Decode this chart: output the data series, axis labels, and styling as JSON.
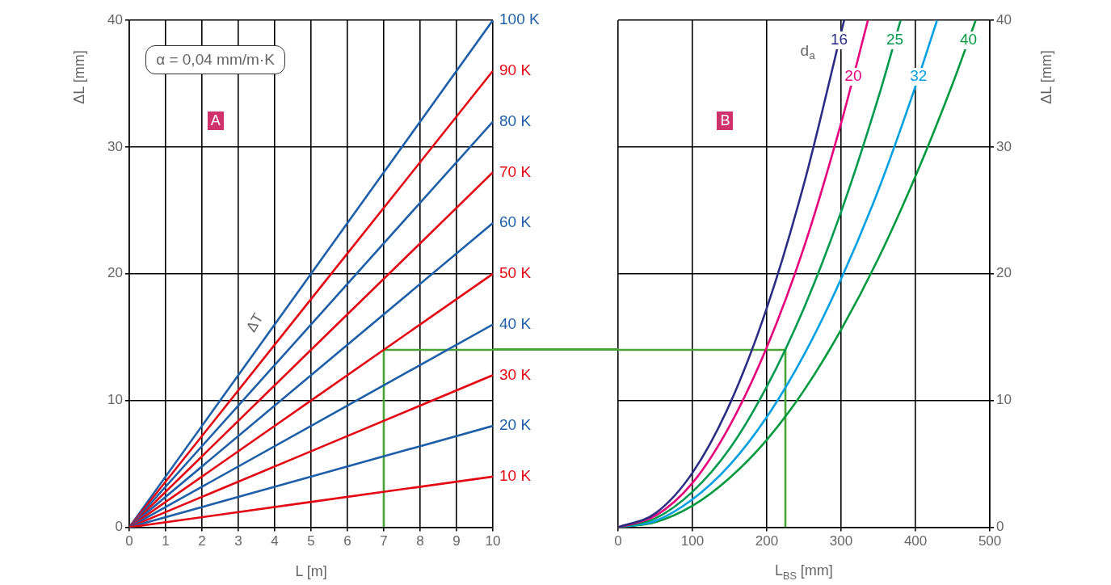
{
  "chart_data": [
    {
      "type": "line",
      "xlabel": "L [m]",
      "ylabel": "ΔL [mm]",
      "xlim": [
        0,
        10
      ],
      "ylim": [
        0,
        40
      ],
      "xticks": [
        0,
        1,
        2,
        3,
        4,
        5,
        6,
        7,
        8,
        9,
        10
      ],
      "yticks": [
        0,
        10,
        20,
        30,
        40
      ],
      "grid": true,
      "legend": false,
      "annotations": [
        "α = 0,04 mm/m·K",
        "A",
        "ΔT"
      ],
      "series": [
        {
          "name": "10 K",
          "color": "#e30613",
          "x": [
            0,
            10
          ],
          "values": [
            0,
            4
          ]
        },
        {
          "name": "20 K",
          "color": "#1d5fa8",
          "x": [
            0,
            10
          ],
          "values": [
            0,
            8
          ]
        },
        {
          "name": "30 K",
          "color": "#e30613",
          "x": [
            0,
            10
          ],
          "values": [
            0,
            12
          ]
        },
        {
          "name": "40 K",
          "color": "#1d5fa8",
          "x": [
            0,
            10
          ],
          "values": [
            0,
            16
          ]
        },
        {
          "name": "50 K",
          "color": "#e30613",
          "x": [
            0,
            10
          ],
          "values": [
            0,
            20
          ]
        },
        {
          "name": "60 K",
          "color": "#1d5fa8",
          "x": [
            0,
            10
          ],
          "values": [
            0,
            24
          ]
        },
        {
          "name": "70 K",
          "color": "#e30613",
          "x": [
            0,
            10
          ],
          "values": [
            0,
            28
          ]
        },
        {
          "name": "80 K",
          "color": "#1d5fa8",
          "x": [
            0,
            10
          ],
          "values": [
            0,
            32
          ]
        },
        {
          "name": "90 K",
          "color": "#e30613",
          "x": [
            0,
            10
          ],
          "values": [
            0,
            36
          ]
        },
        {
          "name": "100 K",
          "color": "#1d5fa8",
          "x": [
            0,
            10
          ],
          "values": [
            0,
            40
          ]
        },
        {
          "color": "#4aa336",
          "x": [
            7,
            7,
            10
          ],
          "values": [
            0,
            14,
            14
          ]
        }
      ]
    },
    {
      "type": "line",
      "xlabel": "L$_{BS}$ [mm]",
      "y2label": "ΔL [mm]",
      "legend_title": "d$_{a}$",
      "xlim": [
        0,
        500
      ],
      "y2lim": [
        0,
        40
      ],
      "xticks": [
        0,
        100,
        200,
        300,
        400,
        500
      ],
      "y2ticks": [
        0,
        10,
        20,
        30,
        40
      ],
      "grid": true,
      "legend": false,
      "annotations": [
        "B"
      ],
      "series": [
        {
          "name": "16",
          "color": "#2b2d84",
          "axis": "y2",
          "x": [
            0,
            50,
            100,
            150,
            200,
            250,
            304
          ],
          "values": [
            0,
            1.1,
            4.3,
            9.7,
            17.3,
            27.1,
            40
          ]
        },
        {
          "name": "20",
          "color": "#e5007d",
          "axis": "y2",
          "x": [
            0,
            50,
            100,
            150,
            200,
            250,
            300,
            336
          ],
          "values": [
            0,
            0.9,
            3.5,
            8.0,
            14.2,
            22.1,
            31.9,
            40
          ]
        },
        {
          "name": "25",
          "color": "#009a4e",
          "axis": "y2",
          "x": [
            0,
            50,
            100,
            150,
            200,
            250,
            300,
            350,
            380
          ],
          "values": [
            0,
            0.7,
            2.8,
            6.2,
            11.1,
            17.3,
            24.9,
            33.9,
            40
          ]
        },
        {
          "name": "32",
          "color": "#00a0e3",
          "axis": "y2",
          "x": [
            0,
            50,
            100,
            150,
            200,
            250,
            300,
            350,
            400,
            429
          ],
          "values": [
            0,
            0.5,
            2.2,
            4.9,
            8.7,
            13.6,
            19.6,
            26.6,
            34.8,
            40
          ]
        },
        {
          "name": "40",
          "color": "#009a3e",
          "axis": "y2",
          "x": [
            0,
            50,
            100,
            150,
            200,
            250,
            300,
            350,
            400,
            450,
            481
          ],
          "values": [
            0,
            0.4,
            1.7,
            3.9,
            6.9,
            10.8,
            15.6,
            21.2,
            27.7,
            35.0,
            40
          ]
        },
        {
          "color": "#4aa336",
          "axis": "y2",
          "x": [
            0,
            225,
            225
          ],
          "values": [
            14,
            14,
            0
          ]
        }
      ]
    }
  ]
}
